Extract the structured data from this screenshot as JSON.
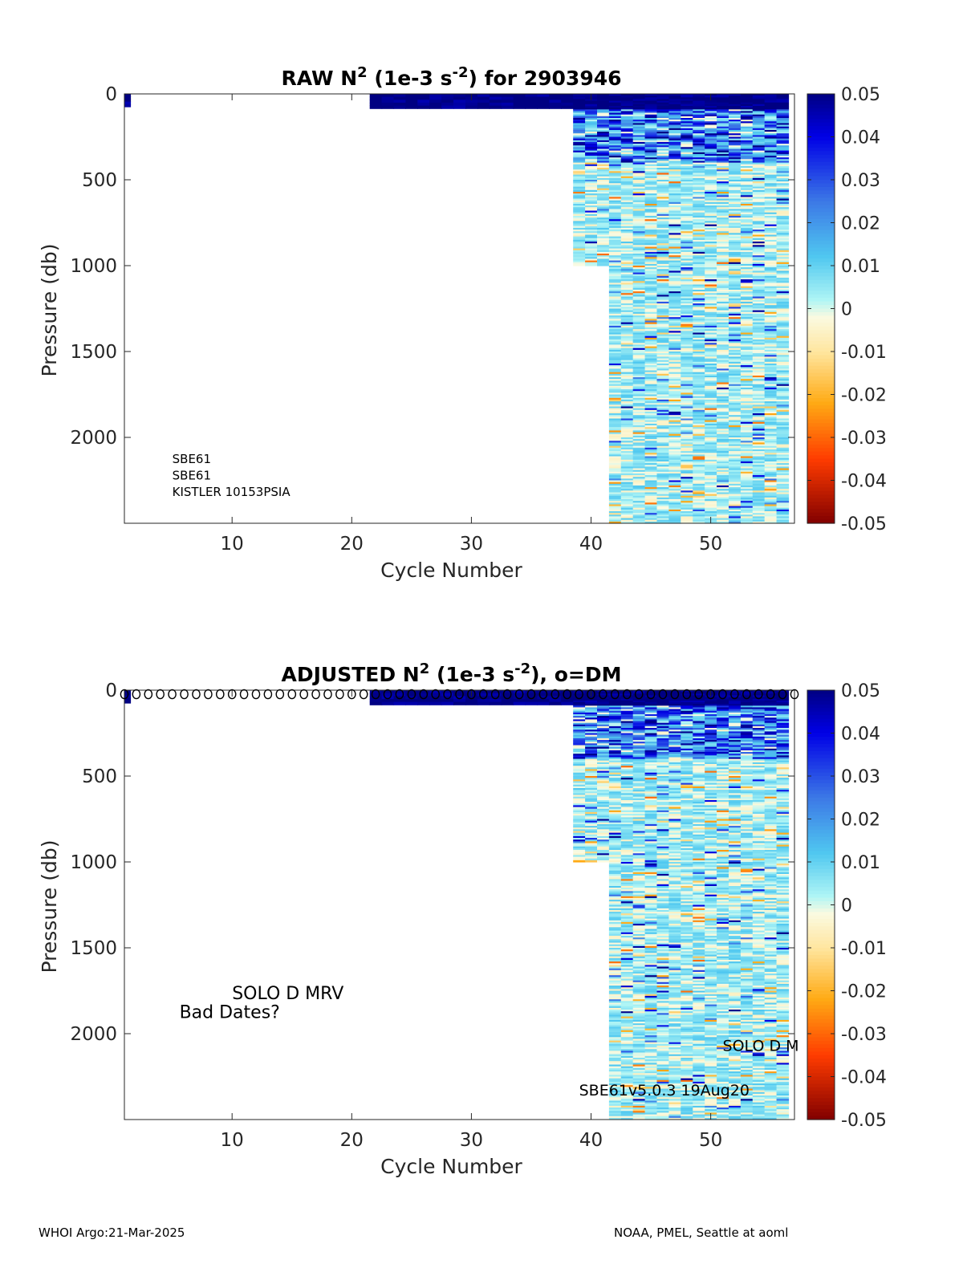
{
  "chart_data": [
    {
      "type": "heatmap",
      "title_prefix": "RAW N",
      "title_sup1": "2",
      "title_mid": " (1e-3 s",
      "title_sup2": "-2",
      "title_suffix": ") for 2903946",
      "xlabel": "Cycle Number",
      "ylabel": "Pressure (db)",
      "xlim": [
        1,
        57
      ],
      "ylim": [
        0,
        2500
      ],
      "y_reversed": true,
      "xticks": [
        "10",
        "20",
        "30",
        "40",
        "50"
      ],
      "yticks": [
        "0",
        "500",
        "1000",
        "1500",
        "2000"
      ],
      "color_scale": {
        "min": -0.05,
        "max": 0.05,
        "colormap": "jet-reversed",
        "ticks": [
          "0.05",
          "0.04",
          "0.03",
          "0.02",
          "0.01",
          "0",
          "-0.01",
          "-0.02",
          "-0.03",
          "-0.04",
          "-0.05"
        ]
      },
      "profiles": [
        {
          "cycles": [
            1,
            1
          ],
          "max_pressure": 75,
          "pattern": "surface-only"
        },
        {
          "cycles": [
            22,
            38
          ],
          "max_pressure": 85,
          "pattern": "surface-only"
        },
        {
          "cycles": [
            39,
            41
          ],
          "max_pressure": 1000,
          "pattern": "full"
        },
        {
          "cycles": [
            42,
            56
          ],
          "max_pressure": 2500,
          "pattern": "full"
        }
      ],
      "dm_markers": null,
      "annotations": [
        {
          "text": "SBE61",
          "x": 5,
          "y": 2150
        },
        {
          "text": "SBE61",
          "x": 5,
          "y": 2245
        },
        {
          "text": "KISTLER 10153PSIA",
          "x": 5,
          "y": 2340
        }
      ]
    },
    {
      "type": "heatmap",
      "title_prefix": "ADJUSTED N",
      "title_sup1": "2",
      "title_mid": " (1e-3 s",
      "title_sup2": "-2",
      "title_suffix": "), o=DM",
      "xlabel": "Cycle Number",
      "ylabel": "Pressure (db)",
      "xlim": [
        1,
        57
      ],
      "ylim": [
        0,
        2500
      ],
      "y_reversed": true,
      "xticks": [
        "10",
        "20",
        "30",
        "40",
        "50"
      ],
      "yticks": [
        "0",
        "500",
        "1000",
        "1500",
        "2000"
      ],
      "color_scale": {
        "min": -0.05,
        "max": 0.05,
        "colormap": "jet-reversed",
        "ticks": [
          "0.05",
          "0.04",
          "0.03",
          "0.02",
          "0.01",
          "0",
          "-0.01",
          "-0.02",
          "-0.03",
          "-0.04",
          "-0.05"
        ]
      },
      "profiles": [
        {
          "cycles": [
            1,
            1
          ],
          "max_pressure": 75,
          "pattern": "surface-only"
        },
        {
          "cycles": [
            22,
            38
          ],
          "max_pressure": 85,
          "pattern": "surface-only"
        },
        {
          "cycles": [
            39,
            41
          ],
          "max_pressure": 1000,
          "pattern": "full"
        },
        {
          "cycles": [
            42,
            56
          ],
          "max_pressure": 2500,
          "pattern": "full"
        }
      ],
      "dm_markers": {
        "symbol": "o",
        "cycles_from": 1,
        "cycles_to": 57,
        "pressure": 0
      },
      "annotations": [
        {
          "text": "SOLO D MRV",
          "x": 10,
          "y": 1800,
          "size": "large"
        },
        {
          "text": "Bad Dates?",
          "x": 5.6,
          "y": 1910,
          "size": "large"
        },
        {
          "text": "SOLO D M",
          "x": 51,
          "y": 2100,
          "size": "medium"
        },
        {
          "text": "SBE61v5.0.3 19Aug20",
          "x": 39,
          "y": 2360,
          "size": "medium"
        }
      ]
    }
  ],
  "footer": {
    "left": "WHOI Argo:21-Mar-2025",
    "right": "NOAA, PMEL, Seattle at aoml"
  }
}
